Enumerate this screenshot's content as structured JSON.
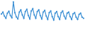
{
  "chart_data": {
    "type": "line",
    "categories": [
      null,
      null,
      null,
      null,
      null,
      null,
      null,
      null,
      null,
      null,
      null,
      null,
      null,
      null,
      null,
      null,
      null,
      null,
      null,
      null,
      null,
      null,
      null,
      null,
      null,
      null,
      null,
      null,
      null,
      null,
      null,
      null,
      null,
      null,
      null,
      null,
      null,
      null,
      null,
      null,
      null,
      null,
      null,
      null,
      null,
      null,
      null,
      null,
      null,
      null,
      null,
      null,
      null,
      null,
      null,
      null
    ],
    "values": [
      55,
      62,
      48,
      40,
      58,
      65,
      50,
      42,
      98,
      60,
      45,
      38,
      62,
      70,
      52,
      40,
      64,
      72,
      50,
      38,
      66,
      74,
      52,
      40,
      64,
      70,
      50,
      38,
      62,
      68,
      48,
      36,
      60,
      66,
      46,
      34,
      58,
      64,
      46,
      36,
      60,
      66,
      48,
      38,
      58,
      62,
      46,
      36,
      56,
      60,
      44,
      36,
      54,
      58,
      44,
      40
    ],
    "color": "#3b8fd4",
    "ylim": [
      0,
      100
    ],
    "tick_labels": false,
    "grid": false,
    "marker": "circle"
  }
}
